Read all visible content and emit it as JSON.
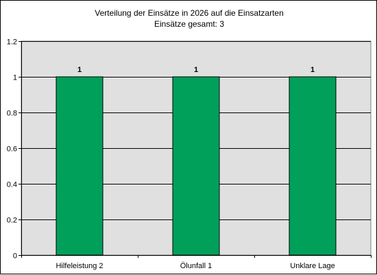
{
  "chart_data": {
    "type": "bar",
    "title": "Verteilung der Einsätze in 2026 auf die Einsatzarten",
    "subtitle": "Einsätze gesamt: 3",
    "categories": [
      "Hilfeleistung 2",
      "Ölunfall 1",
      "Unklare Lage"
    ],
    "values": [
      1,
      1,
      1
    ],
    "data_labels": [
      "1",
      "1",
      "1"
    ],
    "ylim": [
      0,
      1.2
    ],
    "yticks": [
      0,
      0.2,
      0.4,
      0.6,
      0.8,
      1,
      1.2
    ],
    "ytick_labels": [
      "0",
      "0.2",
      "0.4",
      "0.6",
      "0.8",
      "1",
      "1.2"
    ],
    "grid": true,
    "colors": {
      "bar": "#00A05A",
      "plot_background": "#E0E0E0",
      "grid": "#000000"
    }
  }
}
